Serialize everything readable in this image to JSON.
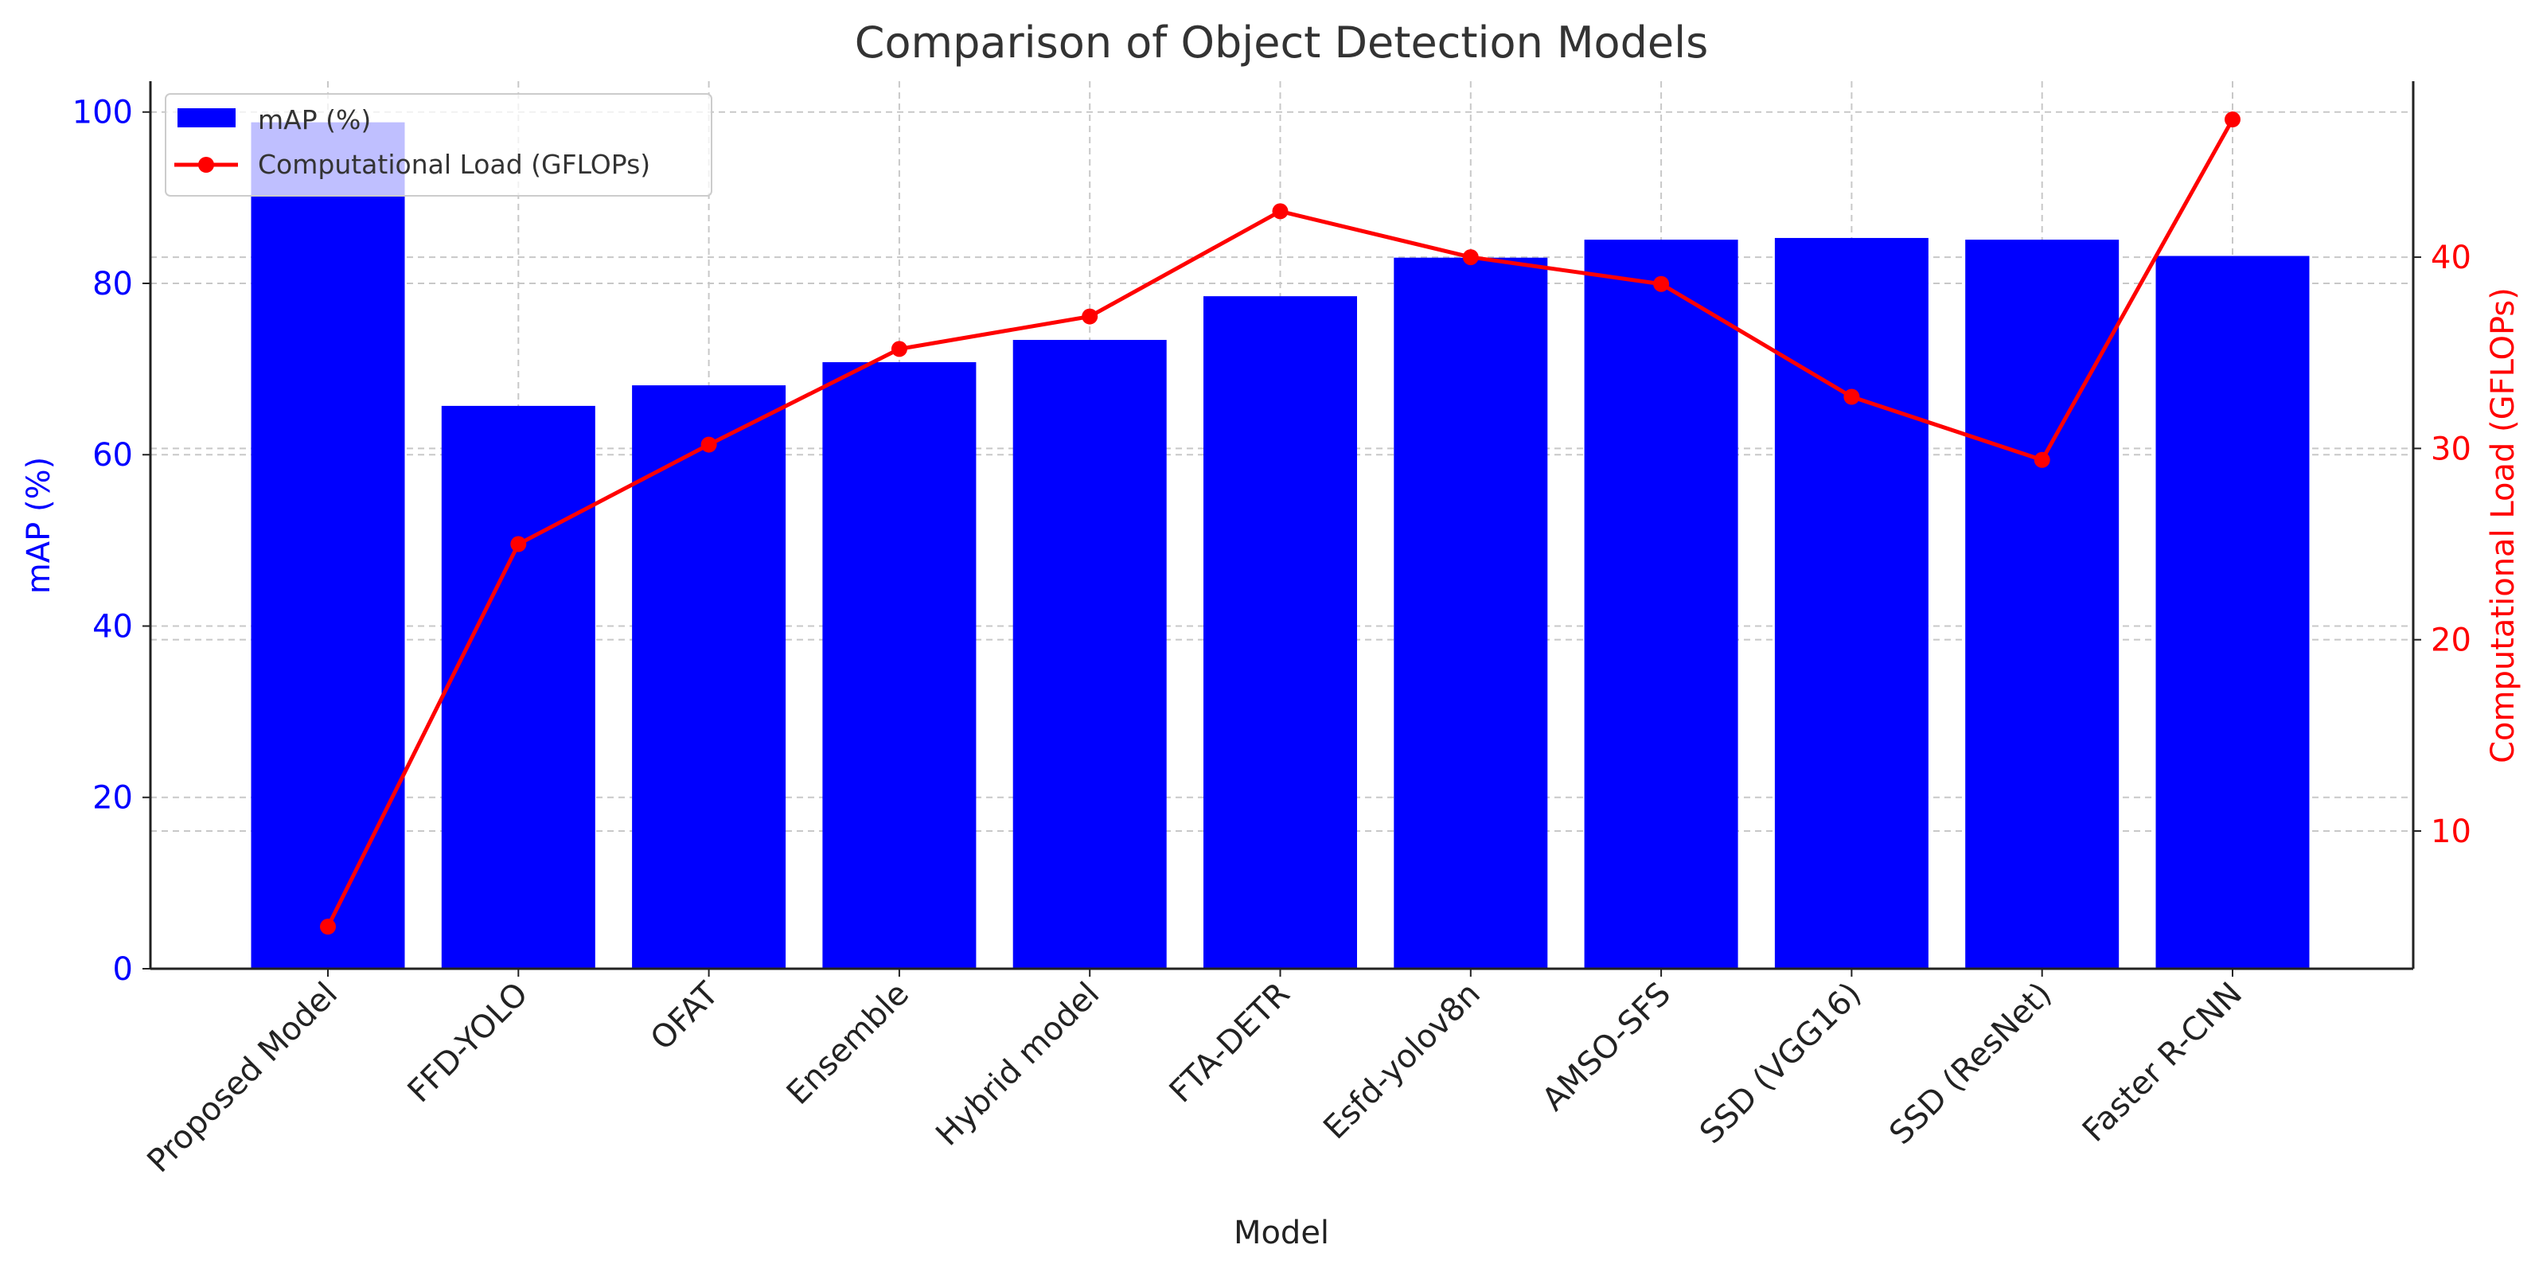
{
  "chart_data": {
    "type": "bar+line",
    "title": "Comparison of Object Detection Models",
    "xlabel": "Model",
    "ylabel": "mAP (%)",
    "y2label": "Computational Load (GFLOPs)",
    "categories": [
      "Proposed Model",
      "FFD-YOLO",
      "OFAT",
      "Ensemble",
      "Hybrid model",
      "FTA-DETR",
      "Esfd-yolov8n",
      "AMSO-SFS",
      "SSD (VGG16)",
      "SSD (ResNet)",
      "Faster R-CNN"
    ],
    "series": [
      {
        "name": "mAP (%)",
        "type": "bar",
        "axis": "left",
        "color": "#0000ff",
        "values": [
          98.8,
          65.7,
          68.1,
          70.8,
          73.4,
          78.5,
          83.0,
          85.1,
          85.3,
          85.1,
          83.2
        ]
      },
      {
        "name": "Computational Load (GFLOPs)",
        "type": "line",
        "axis": "right",
        "color": "#ff0000",
        "values": [
          5.0,
          25.0,
          30.2,
          35.2,
          36.9,
          42.4,
          40.0,
          38.6,
          32.7,
          29.4,
          47.2
        ]
      }
    ],
    "ylim": [
      0,
      103.6
    ],
    "y2lim": [
      2.8,
      49.2
    ],
    "yticks": [
      "0",
      "20",
      "40",
      "60",
      "80",
      "100"
    ],
    "y2ticks": [
      "10",
      "20",
      "30",
      "40"
    ],
    "grid": true,
    "legend": "top-left"
  }
}
